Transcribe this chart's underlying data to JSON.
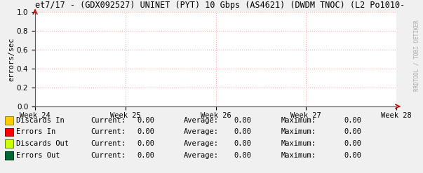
{
  "title": "et7/17 - (GDX092527) UNINET (PYT) 10 Gbps (AS4621) (DWDM TNOC) (L2 Po1010-",
  "ylabel": "errors/sec",
  "watermark": "RRDTOOL / TOBI OETIKER",
  "x_tick_labels": [
    "Week 24",
    "Week 25",
    "Week 26",
    "Week 27",
    "Week 28"
  ],
  "ylim": [
    0.0,
    1.0
  ],
  "yticks": [
    0.0,
    0.2,
    0.4,
    0.6,
    0.8,
    1.0
  ],
  "background_color": "#f0f0f0",
  "plot_bg_color": "#ffffff",
  "grid_color": "#ffaaaa",
  "title_fontsize": 8.5,
  "axis_fontsize": 7.5,
  "legend_fontsize": 7.5,
  "legend_items": [
    {
      "label": "Discards In",
      "color": "#ffcc00",
      "border": "#888800",
      "current": "0.00",
      "average": "0.00",
      "maximum": "0.00"
    },
    {
      "label": "Errors In",
      "color": "#ff0000",
      "border": "#880000",
      "current": "0.00",
      "average": "0.00",
      "maximum": "0.00"
    },
    {
      "label": "Discards Out",
      "color": "#ccff00",
      "border": "#448800",
      "current": "0.00",
      "average": "0.00",
      "maximum": "0.00"
    },
    {
      "label": "Errors Out",
      "color": "#006633",
      "border": "#003311",
      "current": "0.00",
      "average": "0.00",
      "maximum": "0.00"
    }
  ],
  "font_family": "monospace",
  "arrow_color": "#cc0000",
  "watermark_color": "#aaaaaa",
  "spine_color": "#555555"
}
